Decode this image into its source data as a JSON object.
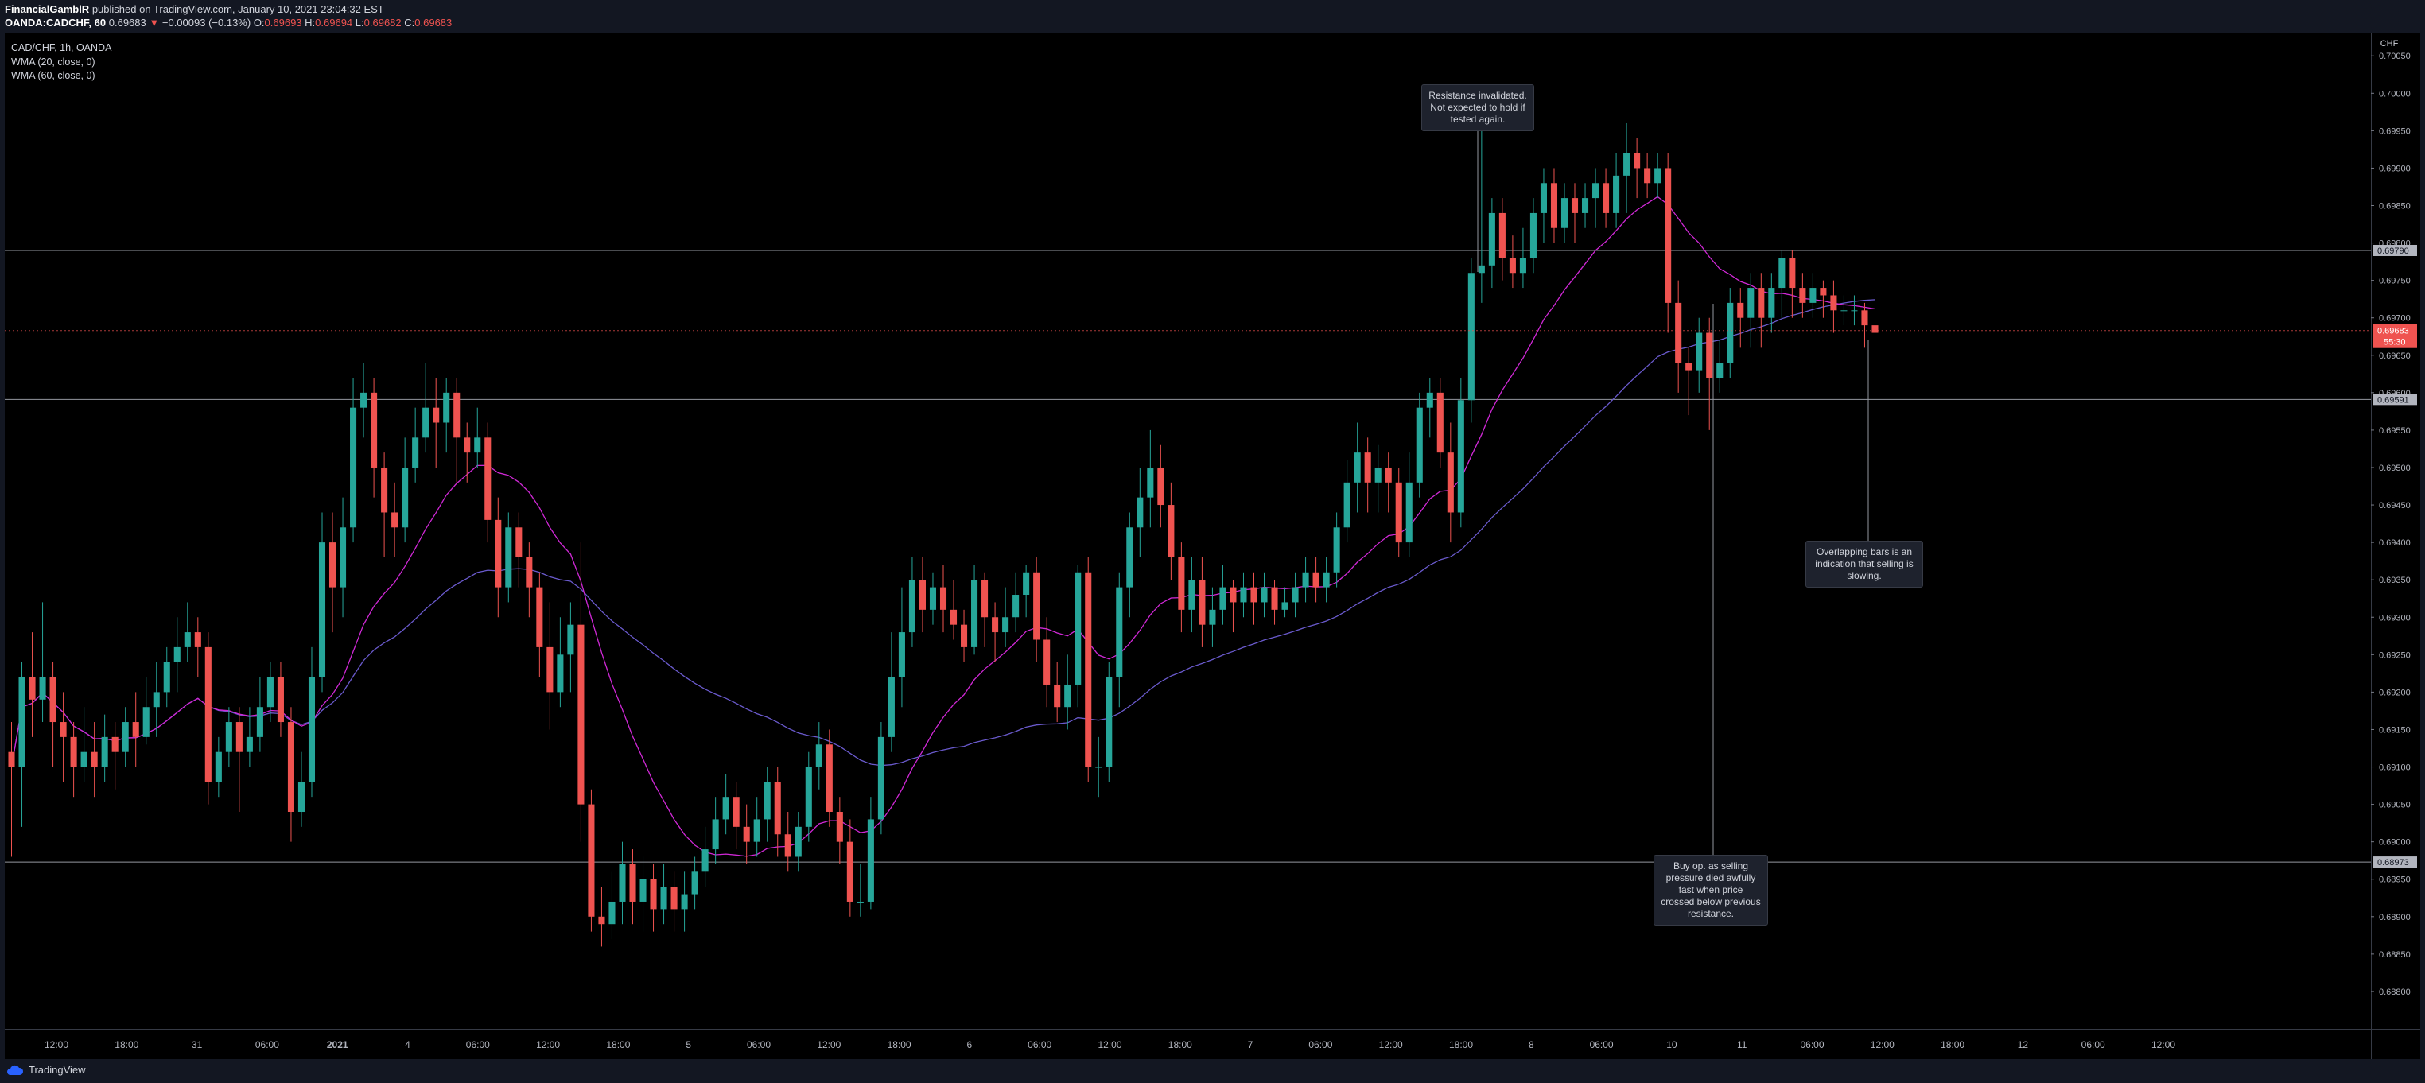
{
  "header": {
    "author": "FinancialGamblR",
    "published": "published on TradingView.com, January 10, 2021 23:04:32 EST",
    "symbol": "OANDA:CADCHF, 60",
    "last": "0.69683",
    "change": "−0.00093 (−0.13%)",
    "o_label": "O:",
    "o": "0.69693",
    "h_label": "H:",
    "h": "0.69694",
    "l_label": "L:",
    "l": "0.69682",
    "c_label": "C:",
    "c": "0.69683"
  },
  "legend": {
    "title": "CAD/CHF, 1h, OANDA",
    "wma20": "WMA (20, close, 0)",
    "wma60": "WMA (60, close, 0)"
  },
  "annotations": {
    "resistance": "Resistance invalidated. Not expected to hold if tested again.",
    "buy": "Buy op. as selling pressure died awfully fast when price crossed below previous resistance.",
    "overlap": "Overlapping bars is an indication that selling is slowing."
  },
  "footer": {
    "brand": "TradingView"
  },
  "colors": {
    "up": "#26a69a",
    "down": "#ef5350",
    "wma20": "#d028d6",
    "wma60": "#6a5acd",
    "hline": "#9598a1"
  },
  "chart_data": {
    "type": "candlestick",
    "currency": "CHF",
    "ylim": [
      0.6875,
      0.7008
    ],
    "y_ticks": [
      "0.70050",
      "0.70000",
      "0.69950",
      "0.69900",
      "0.69850",
      "0.69800",
      "0.69750",
      "0.69700",
      "0.69650",
      "0.69600",
      "0.69550",
      "0.69500",
      "0.69450",
      "0.69400",
      "0.69350",
      "0.69300",
      "0.69250",
      "0.69200",
      "0.69150",
      "0.69100",
      "0.69050",
      "0.69000",
      "0.68950",
      "0.68900",
      "0.68850",
      "0.68800"
    ],
    "x_ticks": [
      "12:00",
      "18:00",
      "31",
      "06:00",
      "2021",
      "4",
      "06:00",
      "12:00",
      "18:00",
      "5",
      "06:00",
      "12:00",
      "18:00",
      "6",
      "06:00",
      "12:00",
      "18:00",
      "7",
      "06:00",
      "12:00",
      "18:00",
      "8",
      "06:00",
      "10",
      "11",
      "06:00",
      "12:00",
      "18:00",
      "12",
      "06:00",
      "12:00"
    ],
    "horizontal_levels": [
      {
        "value": 0.6979,
        "label": "0.69790"
      },
      {
        "value": 0.69591,
        "label": "0.69591"
      },
      {
        "value": 0.68973,
        "label": "0.68973"
      }
    ],
    "last_price": {
      "value": 0.69683,
      "label": "0.69683",
      "countdown": "55:30"
    },
    "candles": [
      [
        0.6912,
        0.691,
        0.6916,
        0.6898
      ],
      [
        0.691,
        0.6922,
        0.6924,
        0.6902
      ],
      [
        0.6922,
        0.6919,
        0.6928,
        0.6914
      ],
      [
        0.6919,
        0.6922,
        0.6932,
        0.6916
      ],
      [
        0.6922,
        0.6916,
        0.6924,
        0.691
      ],
      [
        0.6916,
        0.6914,
        0.692,
        0.6908
      ],
      [
        0.6914,
        0.691,
        0.6916,
        0.6906
      ],
      [
        0.691,
        0.6912,
        0.6918,
        0.6908
      ],
      [
        0.6912,
        0.691,
        0.6916,
        0.6906
      ],
      [
        0.691,
        0.6914,
        0.6917,
        0.6908
      ],
      [
        0.6914,
        0.6912,
        0.6916,
        0.6907
      ],
      [
        0.6912,
        0.6916,
        0.6918,
        0.691
      ],
      [
        0.6916,
        0.6914,
        0.692,
        0.691
      ],
      [
        0.6914,
        0.6918,
        0.6922,
        0.6913
      ],
      [
        0.6918,
        0.692,
        0.6924,
        0.6914
      ],
      [
        0.692,
        0.6924,
        0.6926,
        0.6918
      ],
      [
        0.6924,
        0.6926,
        0.693,
        0.692
      ],
      [
        0.6926,
        0.6928,
        0.6932,
        0.6924
      ],
      [
        0.6928,
        0.6926,
        0.693,
        0.6922
      ],
      [
        0.6926,
        0.6908,
        0.6928,
        0.6905
      ],
      [
        0.6908,
        0.6912,
        0.6914,
        0.6906
      ],
      [
        0.6912,
        0.6916,
        0.6918,
        0.691
      ],
      [
        0.6916,
        0.6912,
        0.6918,
        0.6904
      ],
      [
        0.6912,
        0.6914,
        0.6918,
        0.691
      ],
      [
        0.6914,
        0.6918,
        0.6922,
        0.6912
      ],
      [
        0.6918,
        0.6922,
        0.6924,
        0.6916
      ],
      [
        0.6922,
        0.6916,
        0.6924,
        0.6914
      ],
      [
        0.6916,
        0.6904,
        0.6918,
        0.69
      ],
      [
        0.6904,
        0.6908,
        0.6912,
        0.6902
      ],
      [
        0.6908,
        0.6922,
        0.6926,
        0.6906
      ],
      [
        0.6922,
        0.694,
        0.6944,
        0.692
      ],
      [
        0.694,
        0.6934,
        0.6944,
        0.6928
      ],
      [
        0.6934,
        0.6942,
        0.6946,
        0.693
      ],
      [
        0.6942,
        0.6958,
        0.6962,
        0.694
      ],
      [
        0.6958,
        0.696,
        0.6964,
        0.6954
      ],
      [
        0.696,
        0.695,
        0.6962,
        0.6946
      ],
      [
        0.695,
        0.6944,
        0.6952,
        0.6938
      ],
      [
        0.6944,
        0.6942,
        0.6948,
        0.6938
      ],
      [
        0.6942,
        0.695,
        0.6954,
        0.694
      ],
      [
        0.695,
        0.6954,
        0.6958,
        0.6948
      ],
      [
        0.6954,
        0.6958,
        0.6964,
        0.6952
      ],
      [
        0.6958,
        0.6956,
        0.6962,
        0.695
      ],
      [
        0.6956,
        0.696,
        0.6962,
        0.6952
      ],
      [
        0.696,
        0.6954,
        0.6962,
        0.6948
      ],
      [
        0.6954,
        0.6952,
        0.6956,
        0.6948
      ],
      [
        0.6952,
        0.6954,
        0.6958,
        0.695
      ],
      [
        0.6954,
        0.6943,
        0.6956,
        0.694
      ],
      [
        0.6943,
        0.6934,
        0.6946,
        0.693
      ],
      [
        0.6934,
        0.6942,
        0.6944,
        0.6932
      ],
      [
        0.6942,
        0.6938,
        0.6944,
        0.6934
      ],
      [
        0.6938,
        0.6934,
        0.694,
        0.693
      ],
      [
        0.6934,
        0.6926,
        0.6936,
        0.6922
      ],
      [
        0.6926,
        0.692,
        0.6932,
        0.6915
      ],
      [
        0.692,
        0.6925,
        0.693,
        0.6918
      ],
      [
        0.6925,
        0.6929,
        0.6932,
        0.692
      ],
      [
        0.6929,
        0.6905,
        0.694,
        0.69
      ],
      [
        0.6905,
        0.689,
        0.6907,
        0.6888
      ],
      [
        0.689,
        0.6889,
        0.6894,
        0.6886
      ],
      [
        0.6889,
        0.6892,
        0.6896,
        0.6887
      ],
      [
        0.6892,
        0.6897,
        0.69,
        0.6889
      ],
      [
        0.6897,
        0.6892,
        0.6899,
        0.6889
      ],
      [
        0.6892,
        0.6895,
        0.6898,
        0.6888
      ],
      [
        0.6895,
        0.6891,
        0.6897,
        0.6888
      ],
      [
        0.6891,
        0.6894,
        0.6897,
        0.6889
      ],
      [
        0.6894,
        0.6891,
        0.6896,
        0.6888
      ],
      [
        0.6891,
        0.6893,
        0.6896,
        0.6888
      ],
      [
        0.6893,
        0.6896,
        0.6898,
        0.6891
      ],
      [
        0.6896,
        0.6899,
        0.6902,
        0.6894
      ],
      [
        0.6899,
        0.6903,
        0.6906,
        0.6897
      ],
      [
        0.6903,
        0.6906,
        0.6909,
        0.6901
      ],
      [
        0.6906,
        0.6902,
        0.6908,
        0.6899
      ],
      [
        0.6902,
        0.69,
        0.6905,
        0.6897
      ],
      [
        0.69,
        0.6903,
        0.6906,
        0.6898
      ],
      [
        0.6903,
        0.6908,
        0.691,
        0.69
      ],
      [
        0.6908,
        0.6901,
        0.691,
        0.6898
      ],
      [
        0.6901,
        0.6898,
        0.6904,
        0.6896
      ],
      [
        0.6898,
        0.6902,
        0.6904,
        0.6896
      ],
      [
        0.6902,
        0.691,
        0.6912,
        0.69
      ],
      [
        0.691,
        0.6913,
        0.6916,
        0.6907
      ],
      [
        0.6913,
        0.6904,
        0.6915,
        0.6902
      ],
      [
        0.6904,
        0.69,
        0.6906,
        0.6897
      ],
      [
        0.69,
        0.6892,
        0.6903,
        0.689
      ],
      [
        0.6892,
        0.6892,
        0.6897,
        0.689
      ],
      [
        0.6892,
        0.6903,
        0.6906,
        0.6891
      ],
      [
        0.6903,
        0.6914,
        0.6916,
        0.6901
      ],
      [
        0.6914,
        0.6922,
        0.6928,
        0.6912
      ],
      [
        0.6922,
        0.6928,
        0.6934,
        0.6918
      ],
      [
        0.6928,
        0.6935,
        0.6938,
        0.6926
      ],
      [
        0.6935,
        0.6931,
        0.6938,
        0.6928
      ],
      [
        0.6931,
        0.6934,
        0.6936,
        0.6929
      ],
      [
        0.6934,
        0.6931,
        0.6937,
        0.6928
      ],
      [
        0.6931,
        0.6929,
        0.6935,
        0.6927
      ],
      [
        0.6929,
        0.6926,
        0.6931,
        0.6924
      ],
      [
        0.6926,
        0.6935,
        0.6937,
        0.6925
      ],
      [
        0.6935,
        0.693,
        0.6936,
        0.6926
      ],
      [
        0.693,
        0.6928,
        0.6932,
        0.6924
      ],
      [
        0.6928,
        0.693,
        0.6934,
        0.6926
      ],
      [
        0.693,
        0.6933,
        0.6936,
        0.6928
      ],
      [
        0.6933,
        0.6936,
        0.6937,
        0.693
      ],
      [
        0.6936,
        0.6927,
        0.6938,
        0.6924
      ],
      [
        0.6927,
        0.6921,
        0.693,
        0.6918
      ],
      [
        0.6921,
        0.6918,
        0.6924,
        0.6916
      ],
      [
        0.6918,
        0.6921,
        0.6925,
        0.6915
      ],
      [
        0.6921,
        0.6936,
        0.6937,
        0.6918
      ],
      [
        0.6936,
        0.691,
        0.6938,
        0.6908
      ],
      [
        0.691,
        0.691,
        0.6914,
        0.6906
      ],
      [
        0.691,
        0.6922,
        0.6924,
        0.6908
      ],
      [
        0.6922,
        0.6934,
        0.6936,
        0.6918
      ],
      [
        0.6934,
        0.6942,
        0.6944,
        0.693
      ],
      [
        0.6942,
        0.6946,
        0.695,
        0.6938
      ],
      [
        0.6946,
        0.695,
        0.6955,
        0.6942
      ],
      [
        0.695,
        0.6945,
        0.6953,
        0.6942
      ],
      [
        0.6945,
        0.6938,
        0.6948,
        0.6935
      ],
      [
        0.6938,
        0.6931,
        0.694,
        0.6928
      ],
      [
        0.6931,
        0.6935,
        0.6938,
        0.6928
      ],
      [
        0.6935,
        0.6929,
        0.6938,
        0.6926
      ],
      [
        0.6929,
        0.6931,
        0.6934,
        0.6926
      ],
      [
        0.6931,
        0.6934,
        0.6937,
        0.6929
      ],
      [
        0.6934,
        0.6932,
        0.6935,
        0.6928
      ],
      [
        0.6932,
        0.6934,
        0.6936,
        0.693
      ],
      [
        0.6934,
        0.6932,
        0.6936,
        0.6929
      ],
      [
        0.6932,
        0.6934,
        0.6936,
        0.693
      ],
      [
        0.6934,
        0.6931,
        0.6935,
        0.6929
      ],
      [
        0.6931,
        0.6932,
        0.6934,
        0.693
      ],
      [
        0.6932,
        0.6934,
        0.6936,
        0.693
      ],
      [
        0.6934,
        0.6936,
        0.6938,
        0.6932
      ],
      [
        0.6936,
        0.6934,
        0.6938,
        0.6932
      ],
      [
        0.6934,
        0.6936,
        0.6938,
        0.6932
      ],
      [
        0.6936,
        0.6942,
        0.6944,
        0.6934
      ],
      [
        0.6942,
        0.6948,
        0.6951,
        0.694
      ],
      [
        0.6948,
        0.6952,
        0.6956,
        0.6944
      ],
      [
        0.6952,
        0.6948,
        0.6954,
        0.6944
      ],
      [
        0.6948,
        0.695,
        0.6953,
        0.6944
      ],
      [
        0.695,
        0.6948,
        0.6952,
        0.6944
      ],
      [
        0.6948,
        0.694,
        0.695,
        0.6938
      ],
      [
        0.694,
        0.6948,
        0.6952,
        0.6938
      ],
      [
        0.6948,
        0.6958,
        0.696,
        0.6946
      ],
      [
        0.6958,
        0.696,
        0.6962,
        0.6954
      ],
      [
        0.696,
        0.6952,
        0.6962,
        0.695
      ],
      [
        0.6952,
        0.6944,
        0.6956,
        0.694
      ],
      [
        0.6944,
        0.6959,
        0.6962,
        0.6942
      ],
      [
        0.6959,
        0.6976,
        0.6978,
        0.6956
      ],
      [
        0.6976,
        0.6977,
        0.6996,
        0.6972
      ],
      [
        0.6977,
        0.6984,
        0.6986,
        0.6974
      ],
      [
        0.6984,
        0.6978,
        0.6986,
        0.6975
      ],
      [
        0.6978,
        0.6976,
        0.6981,
        0.6974
      ],
      [
        0.6976,
        0.6978,
        0.6982,
        0.6974
      ],
      [
        0.6978,
        0.6984,
        0.6986,
        0.6976
      ],
      [
        0.6984,
        0.6988,
        0.699,
        0.698
      ],
      [
        0.6988,
        0.6982,
        0.699,
        0.698
      ],
      [
        0.6982,
        0.6986,
        0.6988,
        0.698
      ],
      [
        0.6986,
        0.6984,
        0.6988,
        0.698
      ],
      [
        0.6984,
        0.6986,
        0.6988,
        0.6982
      ],
      [
        0.6986,
        0.6988,
        0.699,
        0.6982
      ],
      [
        0.6988,
        0.6984,
        0.699,
        0.6982
      ],
      [
        0.6984,
        0.6989,
        0.6992,
        0.6982
      ],
      [
        0.6989,
        0.6992,
        0.6996,
        0.6984
      ],
      [
        0.6992,
        0.699,
        0.6994,
        0.6986
      ],
      [
        0.699,
        0.6988,
        0.6992,
        0.6986
      ],
      [
        0.6988,
        0.699,
        0.6992,
        0.6986
      ],
      [
        0.699,
        0.6972,
        0.6992,
        0.6968
      ],
      [
        0.6972,
        0.6964,
        0.6975,
        0.696
      ],
      [
        0.6964,
        0.6963,
        0.6966,
        0.6957
      ],
      [
        0.6963,
        0.6968,
        0.697,
        0.696
      ],
      [
        0.6968,
        0.6962,
        0.697,
        0.6955
      ],
      [
        0.6962,
        0.6964,
        0.6967,
        0.696
      ],
      [
        0.6964,
        0.6972,
        0.6974,
        0.6962
      ],
      [
        0.6972,
        0.697,
        0.6974,
        0.6966
      ],
      [
        0.697,
        0.6974,
        0.6976,
        0.6966
      ],
      [
        0.6974,
        0.697,
        0.6976,
        0.6966
      ],
      [
        0.697,
        0.6974,
        0.6976,
        0.6968
      ],
      [
        0.6974,
        0.6978,
        0.6979,
        0.697
      ],
      [
        0.6978,
        0.6974,
        0.6979,
        0.697
      ],
      [
        0.6974,
        0.6972,
        0.6976,
        0.697
      ],
      [
        0.6972,
        0.6974,
        0.6976,
        0.697
      ],
      [
        0.6974,
        0.6973,
        0.6975,
        0.697
      ],
      [
        0.6973,
        0.6971,
        0.6975,
        0.6968
      ],
      [
        0.6971,
        0.6971,
        0.6973,
        0.6969
      ],
      [
        0.6971,
        0.6971,
        0.6973,
        0.6969
      ],
      [
        0.6971,
        0.6969,
        0.6972,
        0.6966
      ],
      [
        0.6969,
        0.6968,
        0.697,
        0.6966
      ]
    ],
    "candle_fields": [
      "open",
      "close",
      "high",
      "low"
    ]
  }
}
